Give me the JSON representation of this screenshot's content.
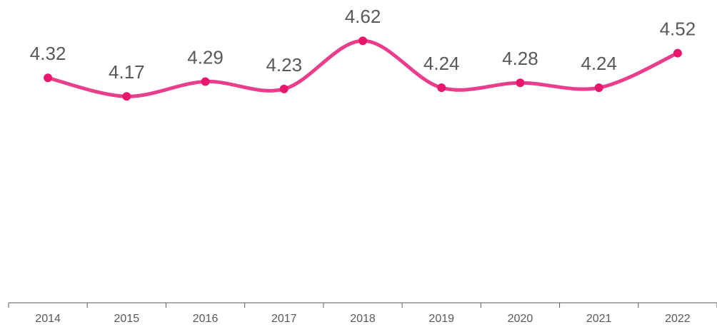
{
  "chart_data": {
    "type": "line",
    "categories": [
      "2014",
      "2015",
      "2016",
      "2017",
      "2018",
      "2019",
      "2020",
      "2021",
      "2022"
    ],
    "series": [
      {
        "color": "#e83e8c",
        "values": [
          4.32,
          4.17,
          4.29,
          4.23,
          4.62,
          4.24,
          4.28,
          4.24,
          4.52
        ]
      }
    ],
    "marker_color": "#e8176b",
    "ylim": [
      2.5,
      4.95
    ]
  }
}
